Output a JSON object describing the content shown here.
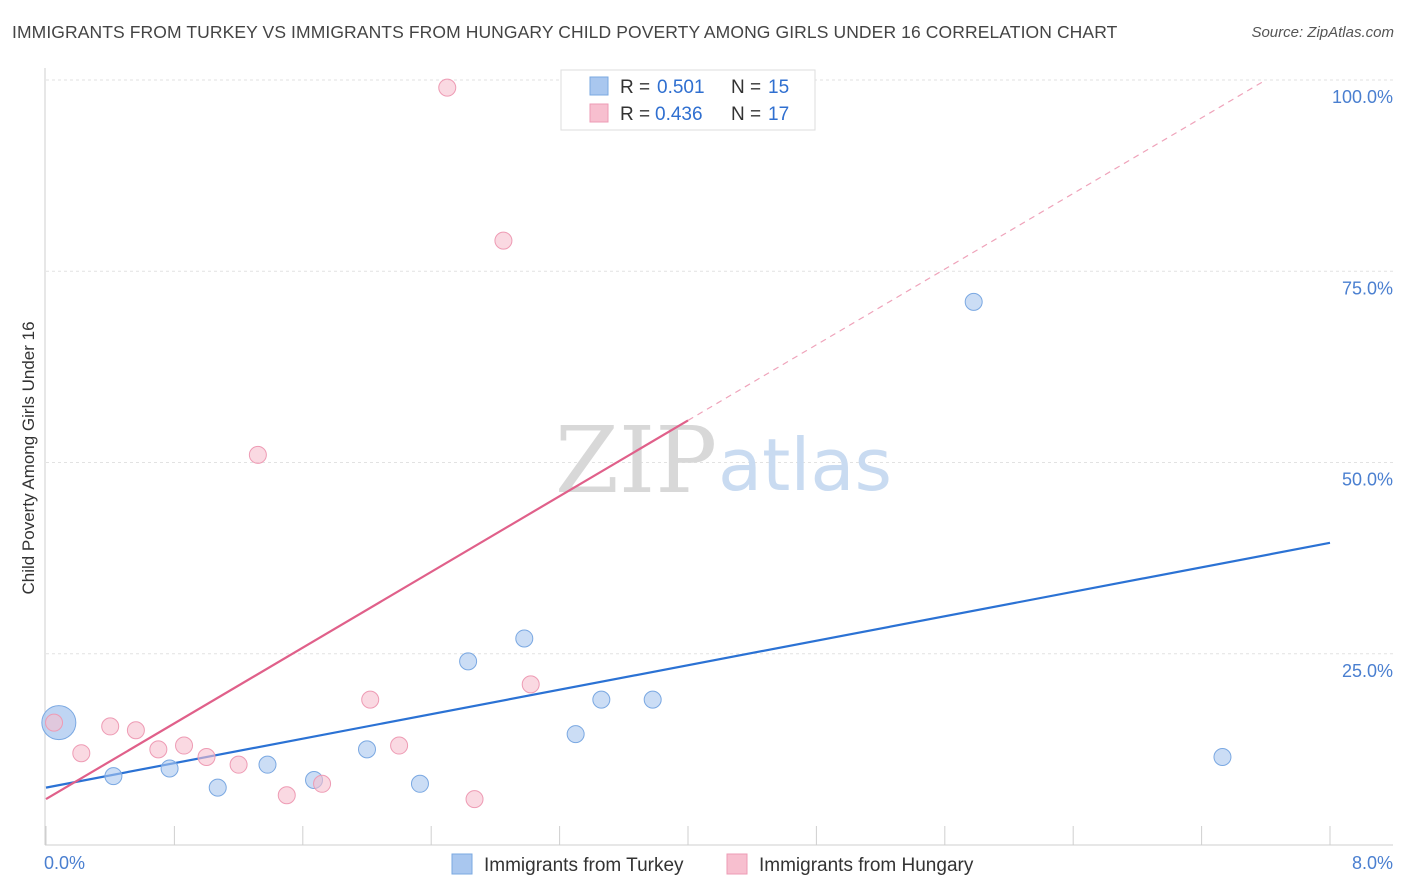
{
  "header": {
    "title": "IMMIGRANTS FROM TURKEY VS IMMIGRANTS FROM HUNGARY CHILD POVERTY AMONG GIRLS UNDER 16 CORRELATION CHART",
    "source": "Source: ZipAtlas.com"
  },
  "watermark": {
    "zip": "ZIP",
    "atlas": "atlas"
  },
  "chart_data": {
    "type": "scatter",
    "title": "IMMIGRANTS FROM TURKEY VS IMMIGRANTS FROM HUNGARY CHILD POVERTY AMONG GIRLS UNDER 16 CORRELATION CHART",
    "xlabel": "",
    "ylabel": "Child Poverty Among Girls Under 16",
    "xlim": [
      0,
      8
    ],
    "ylim": [
      0,
      100
    ],
    "x_tick_labels": {
      "left": "0.0%",
      "right": "8.0%"
    },
    "y_ticks": [
      {
        "value": 100,
        "label": "100.0%"
      },
      {
        "value": 75,
        "label": "75.0%"
      },
      {
        "value": 50,
        "label": "50.0%"
      },
      {
        "value": 25,
        "label": "25.0%"
      }
    ],
    "grid": true,
    "legend_position": "top-center",
    "series": [
      {
        "name": "Immigrants from Turkey",
        "color": "#a9c7ef",
        "stroke": "#7aa8e2",
        "line_color": "#2b72d4",
        "R": "0.501",
        "N": "15",
        "r_label": "R =",
        "n_label": "N =",
        "points": [
          {
            "x": 0.08,
            "y": 16,
            "big": true
          },
          {
            "x": 0.42,
            "y": 9
          },
          {
            "x": 0.77,
            "y": 10
          },
          {
            "x": 1.07,
            "y": 7.5
          },
          {
            "x": 1.38,
            "y": 10.5
          },
          {
            "x": 1.67,
            "y": 8.5
          },
          {
            "x": 2.0,
            "y": 12.5
          },
          {
            "x": 2.33,
            "y": 8
          },
          {
            "x": 2.63,
            "y": 24
          },
          {
            "x": 2.98,
            "y": 27
          },
          {
            "x": 3.3,
            "y": 14.5
          },
          {
            "x": 3.46,
            "y": 19
          },
          {
            "x": 3.78,
            "y": 19
          },
          {
            "x": 5.78,
            "y": 71
          },
          {
            "x": 7.33,
            "y": 11.5
          }
        ],
        "trend": {
          "x0": 0,
          "y0": 7.5,
          "x1": 8,
          "y1": 39.5
        }
      },
      {
        "name": "Immigrants from Hungary",
        "color": "#f7bfcf",
        "stroke": "#ee9bb4",
        "line_color": "#e0608a",
        "R": "0.436",
        "N": "17",
        "r_label": "R =",
        "n_label": "N =",
        "points": [
          {
            "x": 0.05,
            "y": 16
          },
          {
            "x": 0.22,
            "y": 12
          },
          {
            "x": 0.4,
            "y": 15.5
          },
          {
            "x": 0.56,
            "y": 15
          },
          {
            "x": 0.7,
            "y": 12.5
          },
          {
            "x": 0.86,
            "y": 13
          },
          {
            "x": 1.0,
            "y": 11.5
          },
          {
            "x": 1.2,
            "y": 10.5
          },
          {
            "x": 1.32,
            "y": 51
          },
          {
            "x": 1.5,
            "y": 6.5
          },
          {
            "x": 1.72,
            "y": 8
          },
          {
            "x": 2.02,
            "y": 19
          },
          {
            "x": 2.2,
            "y": 13
          },
          {
            "x": 2.5,
            "y": 99
          },
          {
            "x": 2.67,
            "y": 6
          },
          {
            "x": 2.85,
            "y": 79
          },
          {
            "x": 3.02,
            "y": 21
          }
        ],
        "trend": {
          "x0": 0,
          "y0": 6,
          "x1": 4.0,
          "y1": 55.5
        },
        "trend_dashed": {
          "x0": 4.0,
          "y0": 55.5,
          "x1": 7.6,
          "y1": 100
        }
      }
    ]
  }
}
